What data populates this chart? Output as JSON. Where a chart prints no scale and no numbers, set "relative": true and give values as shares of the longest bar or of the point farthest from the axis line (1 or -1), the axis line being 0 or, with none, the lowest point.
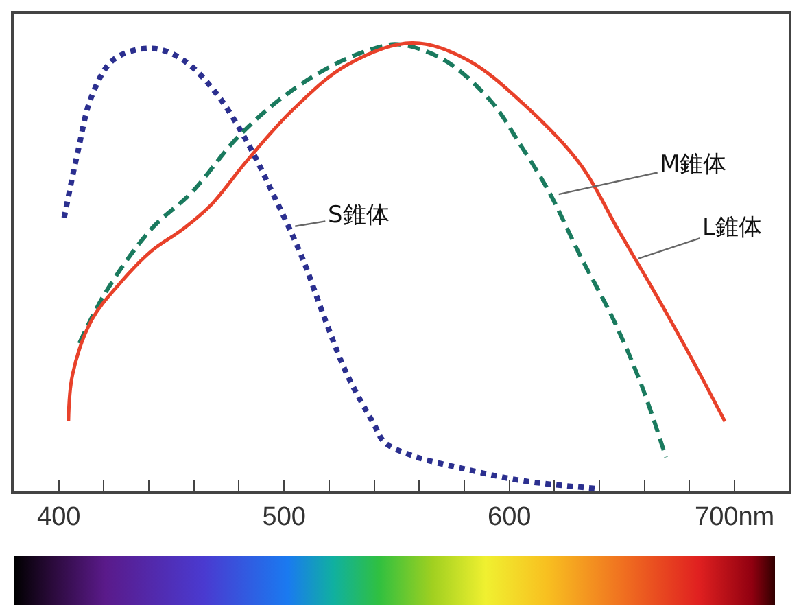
{
  "chart_data": {
    "type": "line",
    "relative": true,
    "marker": "none",
    "xlim": [
      380,
      724
    ],
    "xticks": [
      400,
      {
        "value": 420,
        "label": null
      },
      {
        "value": 440,
        "label": null
      },
      {
        "value": 460,
        "label": null
      },
      {
        "value": 480,
        "label": null
      },
      500,
      {
        "value": 520,
        "label": null
      },
      {
        "value": 540,
        "label": null
      },
      {
        "value": 560,
        "label": null
      },
      {
        "value": 580,
        "label": null
      },
      600,
      {
        "value": 620,
        "label": null
      },
      {
        "value": 640,
        "label": null
      },
      {
        "value": 660,
        "label": null
      },
      {
        "value": 680,
        "label": null
      },
      {
        "value": 700,
        "label": "700nm"
      }
    ],
    "series": [
      {
        "color": "#2b2f8f",
        "line_style": "dotted",
        "x": [
          402.4,
          408.5,
          414.6,
          424.4,
          440.9,
          454.9,
          469.5,
          483.5,
          495.7,
          507.9,
          518.3,
          528,
          540.2,
          544.5,
          556.7,
          581.1,
          605.5,
          639
        ],
        "values": [
          0.61,
          0.758,
          0.881,
          0.963,
          0.988,
          0.963,
          0.89,
          0.78,
          0.657,
          0.523,
          0.382,
          0.26,
          0.147,
          0.11,
          0.08,
          0.049,
          0.024,
          0.006
        ]
      },
      {
        "color": "#1a7a5e",
        "line_style": "dashed",
        "x": [
          409.1,
          420.7,
          440.9,
          459.1,
          479.3,
          500,
          522,
          540.2,
          550.6,
          570.7,
          591.5,
          605.5,
          617.7,
          631.7,
          646.3,
          658.5,
          669.5
        ],
        "values": [
          0.33,
          0.443,
          0.584,
          0.667,
          0.789,
          0.881,
          0.951,
          0.988,
          0.997,
          0.963,
          0.872,
          0.768,
          0.667,
          0.523,
          0.382,
          0.239,
          0.076
        ]
      },
      {
        "color": "#e8412a",
        "line_style": "solid",
        "x": [
          404.3,
          406.1,
          414.6,
          426.8,
          440.9,
          454.9,
          467.1,
          483.5,
          503.7,
          528,
          556.7,
          581.1,
          607.3,
          631.7,
          648.2,
          664.6,
          680.5,
          695.7
        ],
        "values": [
          0.156,
          0.26,
          0.382,
          0.462,
          0.535,
          0.584,
          0.636,
          0.737,
          0.85,
          0.951,
          1.0,
          0.963,
          0.859,
          0.728,
          0.584,
          0.443,
          0.3,
          0.156
        ]
      }
    ],
    "annotations": [
      {
        "text": "S錐体",
        "x": 503.7,
        "y": 0.59
      },
      {
        "text": "M錐体",
        "x": 620.7,
        "y": 0.661
      },
      {
        "text": "L錐体",
        "x": 656,
        "y": 0.517
      }
    ]
  }
}
